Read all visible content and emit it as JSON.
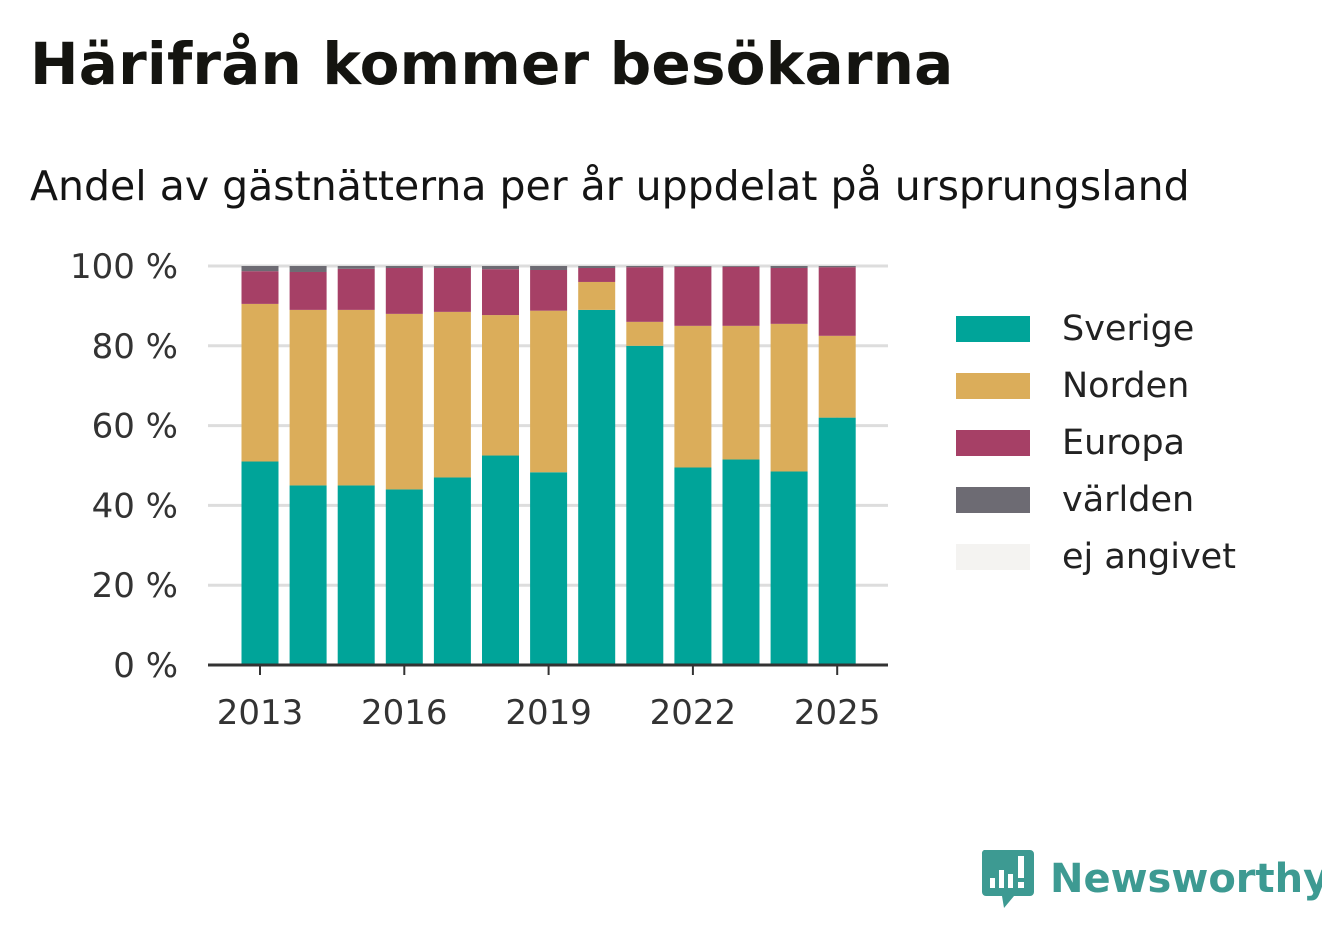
{
  "title": "Härifrån kommer besökarna",
  "subtitle": "Andel av gästnätterna per år uppdelat på ursprungsland",
  "brand": "Newsworthy",
  "chart_data": {
    "type": "bar",
    "stacked": true,
    "categories": [
      "2013",
      "2014",
      "2015",
      "2016",
      "2017",
      "2018",
      "2019",
      "2020",
      "2021",
      "2022",
      "2023",
      "2024",
      "2025"
    ],
    "x_tick_labels": [
      "2013",
      "2016",
      "2019",
      "2022",
      "2025"
    ],
    "y_tick_labels": [
      "0 %",
      "20 %",
      "40 %",
      "60 %",
      "80 %",
      "100 %"
    ],
    "ylim": [
      0,
      100
    ],
    "grid": true,
    "legend_position": "right",
    "series": [
      {
        "name": "Sverige",
        "color": "#00a499",
        "values": [
          51,
          45,
          45,
          44,
          47,
          52.5,
          48.3,
          89,
          80,
          49.5,
          51.5,
          48.5,
          62
        ]
      },
      {
        "name": "Norden",
        "color": "#dbad5a",
        "values": [
          39.5,
          44,
          44,
          44,
          41.5,
          35.2,
          40.5,
          7,
          6,
          35.5,
          33.5,
          37,
          20.5
        ]
      },
      {
        "name": "Europa",
        "color": "#a64066",
        "values": [
          8.2,
          9.5,
          10.3,
          11.5,
          11,
          11.5,
          10.2,
          3.5,
          13.7,
          14.8,
          14.8,
          14,
          17.2
        ]
      },
      {
        "name": "världen",
        "color": "#6d6b73",
        "values": [
          1.3,
          1.5,
          0.7,
          0.5,
          0.5,
          0.8,
          1,
          0.5,
          0.3,
          0.2,
          0.2,
          0.5,
          0.3
        ]
      },
      {
        "name": "ej angivet",
        "color": "#f4f3f1",
        "values": [
          0,
          0,
          0,
          0,
          0,
          0,
          0,
          0,
          0,
          0,
          0,
          0,
          0
        ]
      }
    ]
  }
}
